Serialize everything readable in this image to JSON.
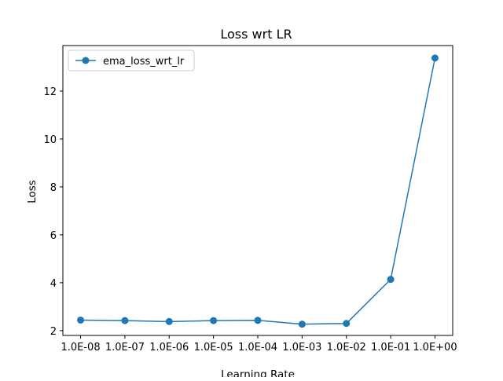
{
  "chart_data": {
    "type": "line",
    "title": "Loss wrt LR",
    "xlabel": "Learning Rate",
    "ylabel": "Loss",
    "x_scale": "log",
    "x": [
      "1.0E-08",
      "1.0E-07",
      "1.0E-06",
      "1.0E-05",
      "1.0E-04",
      "1.0E-03",
      "1.0E-02",
      "1.0E-01",
      "1.0E+00"
    ],
    "x_values": [
      1e-08,
      1e-07,
      1e-06,
      1e-05,
      0.0001,
      0.001,
      0.01,
      0.1,
      1
    ],
    "series": [
      {
        "name": "ema_loss_wrt_lr",
        "values": [
          2.44,
          2.42,
          2.38,
          2.42,
          2.43,
          2.27,
          2.3,
          4.14,
          13.38
        ],
        "color": "#1f77b4",
        "marker": "circle"
      }
    ],
    "y_ticks": [
      2,
      4,
      6,
      8,
      10,
      12
    ],
    "ylim": [
      1.8,
      13.9
    ],
    "grid": false,
    "legend_position": "top-left"
  }
}
